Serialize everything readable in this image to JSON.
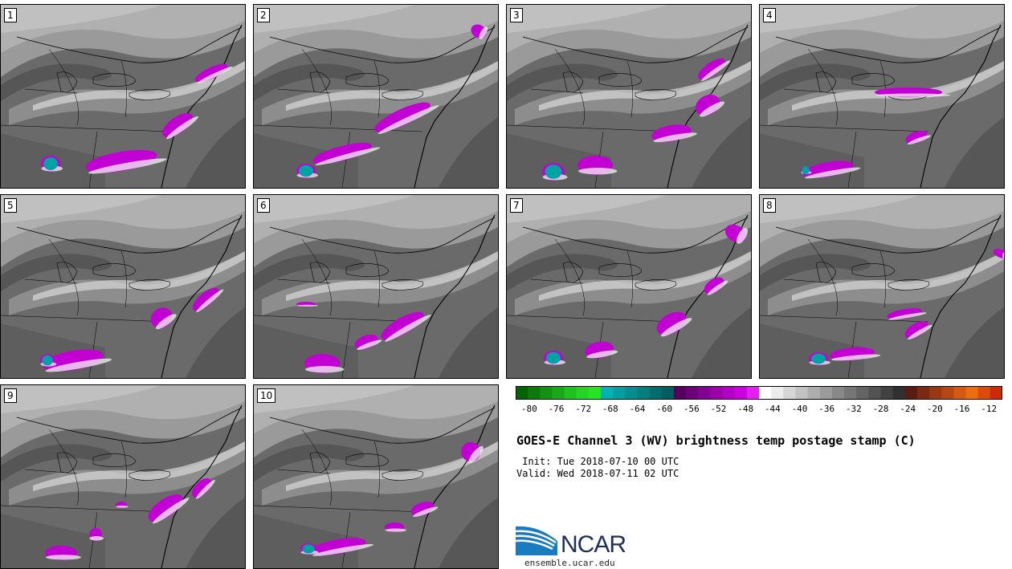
{
  "panels": [
    {
      "label": "1"
    },
    {
      "label": "2"
    },
    {
      "label": "3"
    },
    {
      "label": "4"
    },
    {
      "label": "5"
    },
    {
      "label": "6"
    },
    {
      "label": "7"
    },
    {
      "label": "8"
    },
    {
      "label": "9"
    },
    {
      "label": "10"
    }
  ],
  "colorbar": {
    "ticks": [
      "-80",
      "-76",
      "-72",
      "-68",
      "-64",
      "-60",
      "-56",
      "-52",
      "-48",
      "-44",
      "-40",
      "-36",
      "-32",
      "-28",
      "-24",
      "-20",
      "-16",
      "-12"
    ],
    "range": [
      -82,
      -10
    ],
    "colors": [
      "#006400",
      "#0a7a0a",
      "#119311",
      "#17a917",
      "#1ec21e",
      "#23d623",
      "#22e622",
      "#00b3b3",
      "#00a0a0",
      "#008f8f",
      "#007f7f",
      "#006e6e",
      "#005e5e",
      "#55005f",
      "#6b0078",
      "#820092",
      "#9b00ab",
      "#b400c6",
      "#cc00df",
      "#e31ff2",
      "#ffffff",
      "#ececec",
      "#d6d6d6",
      "#c2c2c2",
      "#aeaeae",
      "#9b9b9b",
      "#888888",
      "#767676",
      "#646464",
      "#525252",
      "#414141",
      "#303030",
      "#5a1c10",
      "#7a2a12",
      "#9a3814",
      "#b84614",
      "#d45a12",
      "#ec6d0c",
      "#dd4a0c",
      "#cc2a08"
    ]
  },
  "title": "GOES-E Channel 3 (WV) brightness temp postage stamp (C)",
  "init": " Init: Tue 2018-07-10 00 UTC",
  "valid": "Valid: Wed 2018-07-11 02 UTC",
  "logo": {
    "text": "NCAR",
    "url": "ensemble.ucar.edu",
    "brand_color": "#1f2f57",
    "accent_color": "#1a7bbf"
  }
}
